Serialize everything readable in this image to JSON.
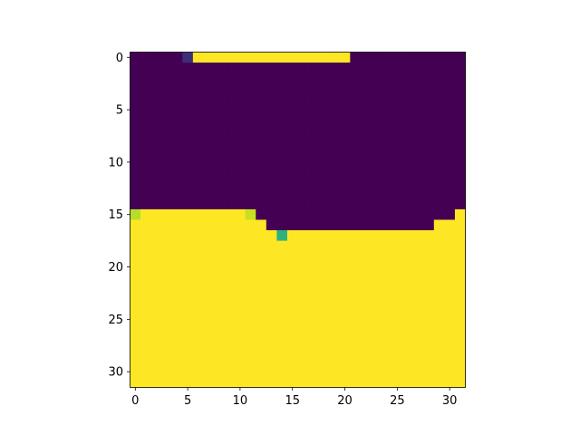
{
  "chart_data": {
    "type": "heatmap",
    "colormap": "viridis",
    "colors": {
      "low": "#440154",
      "high": "#fde725"
    },
    "grid": false,
    "rows": 32,
    "cols": 32,
    "x_ticks": [
      0,
      5,
      10,
      15,
      20,
      25,
      30
    ],
    "y_ticks": [
      0,
      5,
      10,
      15,
      20,
      25,
      30
    ],
    "xlim": [
      -0.5,
      31.5
    ],
    "ylim": [
      31.5,
      -0.5
    ],
    "boundary_by_column": [
      15,
      15,
      15,
      15,
      15,
      15,
      15,
      15,
      15,
      15,
      15,
      15,
      16,
      17,
      17,
      17,
      17,
      17,
      17,
      17,
      17,
      17,
      17,
      17,
      17,
      17,
      17,
      17,
      17,
      16,
      16,
      15
    ],
    "top_strip": {
      "row": 0,
      "from_col": 6,
      "to_col": 20
    },
    "special_cells": [
      {
        "row": 0,
        "col": 5,
        "color": "#3b2f7a"
      },
      {
        "row": 15,
        "col": 0,
        "color": "#b5de2b"
      },
      {
        "row": 15,
        "col": 11,
        "color": "#c8e020"
      },
      {
        "row": 17,
        "col": 14,
        "color": "#2db27d"
      }
    ]
  }
}
